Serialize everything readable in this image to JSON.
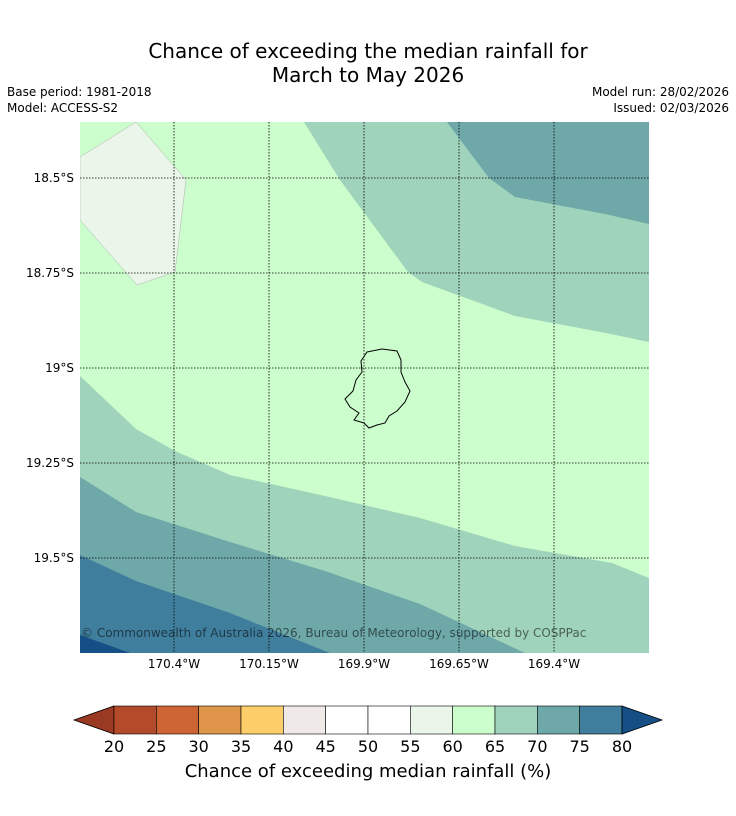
{
  "title": {
    "line1": "Chance of exceeding the median rainfall for",
    "line2": "March to May 2026"
  },
  "meta": {
    "base_period": "Base period: 1981-2018",
    "model": "Model: ACCESS-S2",
    "model_run": "Model run: 28/02/2026",
    "issued": "Issued: 02/03/2026"
  },
  "map": {
    "y_ticks": [
      "18.5°S",
      "18.75°S",
      "19°S",
      "19.25°S",
      "19.5°S"
    ],
    "x_ticks": [
      "170.4°W",
      "170.15°W",
      "169.9°W",
      "169.65°W",
      "169.4°W"
    ],
    "credit": "© Commonwealth of Australia 2026, Bureau of Meteorology, supported by COSPPac",
    "island": "Niue"
  },
  "colorbar": {
    "label": "Chance of exceeding median rainfall (%)",
    "ticks": [
      "20",
      "25",
      "30",
      "35",
      "40",
      "45",
      "50",
      "55",
      "60",
      "65",
      "70",
      "75",
      "80"
    ],
    "colors": [
      "#b34a29",
      "#cd6433",
      "#e0964a",
      "#fdcd6a",
      "#efe9e7",
      "#ffffff",
      "#ffffff",
      "#e9f6e9",
      "#ccfdcc",
      "#9fd3bb",
      "#6ea8a8",
      "#407e9d"
    ],
    "under_color": "#9b3a22",
    "over_color": "#154f86"
  }
}
